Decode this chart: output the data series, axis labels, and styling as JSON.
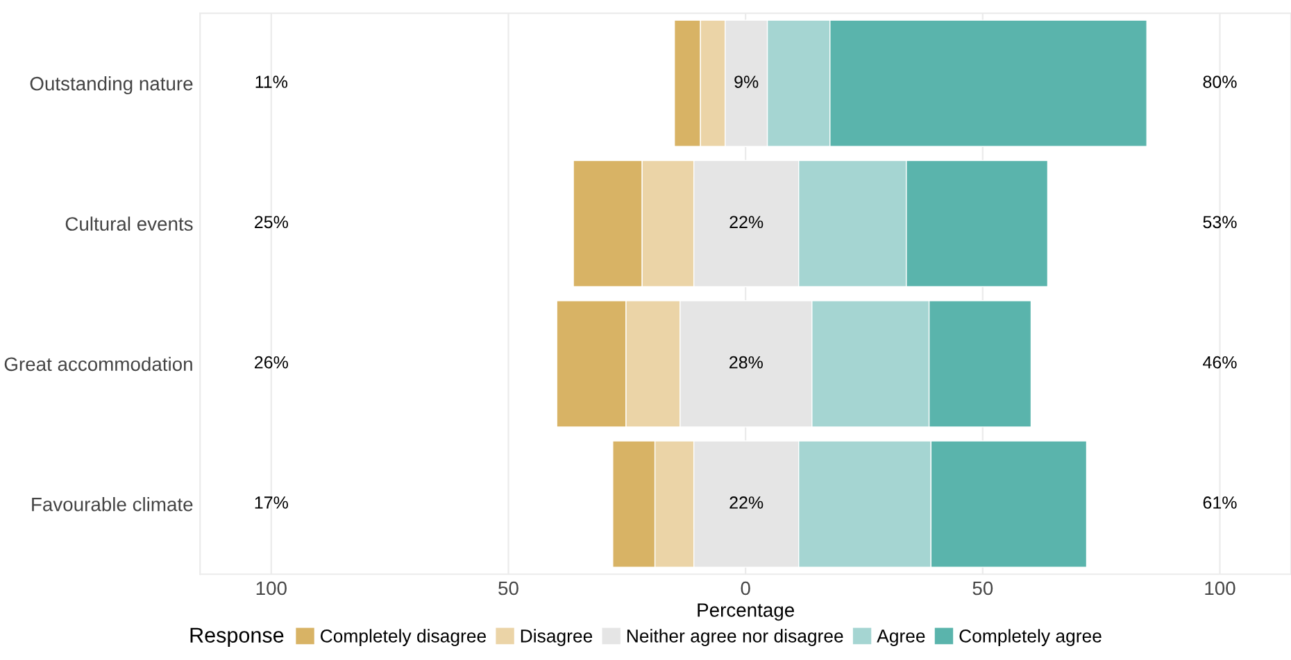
{
  "chart_data": {
    "type": "bar",
    "orientation": "horizontal",
    "categories": [
      "Outstanding nature",
      "Cultural events",
      "Great accommodation",
      "Favourable climate"
    ],
    "series": [
      {
        "name": "Completely disagree",
        "color": "#d8b365",
        "base": [
          -15.0,
          -36.3,
          -39.8,
          -28.0
        ],
        "values": [
          5.5,
          14.5,
          14.6,
          8.9
        ]
      },
      {
        "name": "Disagree",
        "color": "#ebd4a7",
        "base": [
          -9.5,
          -21.8,
          -25.2,
          -19.1
        ],
        "values": [
          5.2,
          10.9,
          11.4,
          8.2
        ]
      },
      {
        "name": "Neither agree nor disagree",
        "color": "#e5e5e5",
        "base": [
          -4.3,
          -10.9,
          -13.8,
          -10.9
        ],
        "values": [
          8.9,
          22.1,
          27.8,
          22.1
        ],
        "value_labels": [
          "9%",
          "22%",
          "28%",
          "22%"
        ]
      },
      {
        "name": "Agree",
        "color": "#a5d5d2",
        "base": [
          4.6,
          11.2,
          14.0,
          11.2
        ],
        "values": [
          13.2,
          22.7,
          24.7,
          27.9
        ]
      },
      {
        "name": "Completely agree",
        "color": "#5ab4ac",
        "base": [
          17.8,
          33.9,
          38.7,
          39.1
        ],
        "values": [
          66.8,
          29.8,
          21.5,
          32.8
        ]
      }
    ],
    "xlabel": "Percentage",
    "legend_title": "Response",
    "legend": "bottom",
    "grid": "x",
    "xlim": [
      -115,
      115
    ],
    "xticks": [
      {
        "value": -100,
        "label": "100"
      },
      {
        "value": -50,
        "label": "50"
      },
      0,
      50,
      100
    ],
    "annotations": [
      "11%",
      "80%",
      "25%",
      "53%",
      "26%",
      "46%",
      "17%",
      "61%"
    ]
  }
}
